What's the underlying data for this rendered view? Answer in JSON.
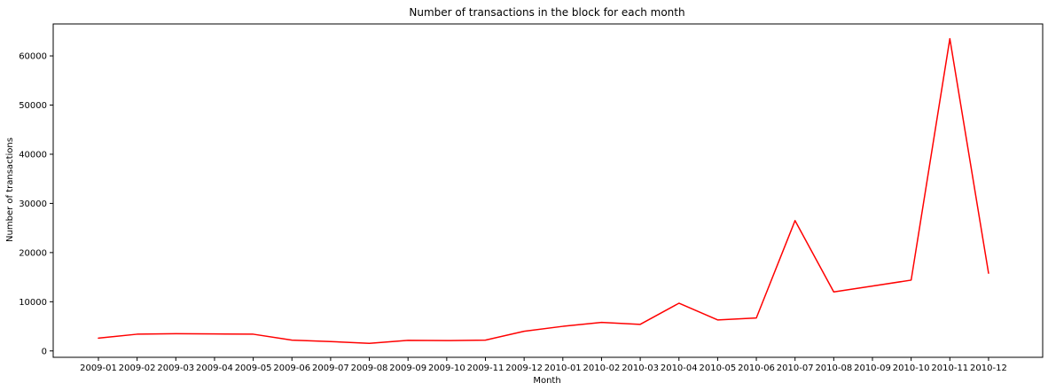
{
  "chart_data": {
    "type": "line",
    "title": "Number of transactions in the block for each month",
    "xlabel": "Month",
    "ylabel": "Number of transactions",
    "categories": [
      "2009-01",
      "2009-02",
      "2009-03",
      "2009-04",
      "2009-05",
      "2009-06",
      "2009-07",
      "2009-08",
      "2009-09",
      "2009-10",
      "2009-11",
      "2009-12",
      "2010-01",
      "2010-02",
      "2010-03",
      "2010-04",
      "2010-05",
      "2010-06",
      "2010-07",
      "2010-08",
      "2010-09",
      "2010-10",
      "2010-11",
      "2010-12"
    ],
    "values": [
      2600,
      3400,
      3500,
      3450,
      3400,
      2200,
      1900,
      1550,
      2150,
      2100,
      2200,
      4000,
      5000,
      5800,
      5400,
      9700,
      6300,
      6700,
      26500,
      12000,
      13200,
      14400,
      63500,
      15800
    ],
    "ylim": [
      -1300,
      66500
    ],
    "yticks": [
      0,
      10000,
      20000,
      30000,
      40000,
      50000,
      60000
    ],
    "grid": false,
    "line_color": "#ff0000"
  }
}
